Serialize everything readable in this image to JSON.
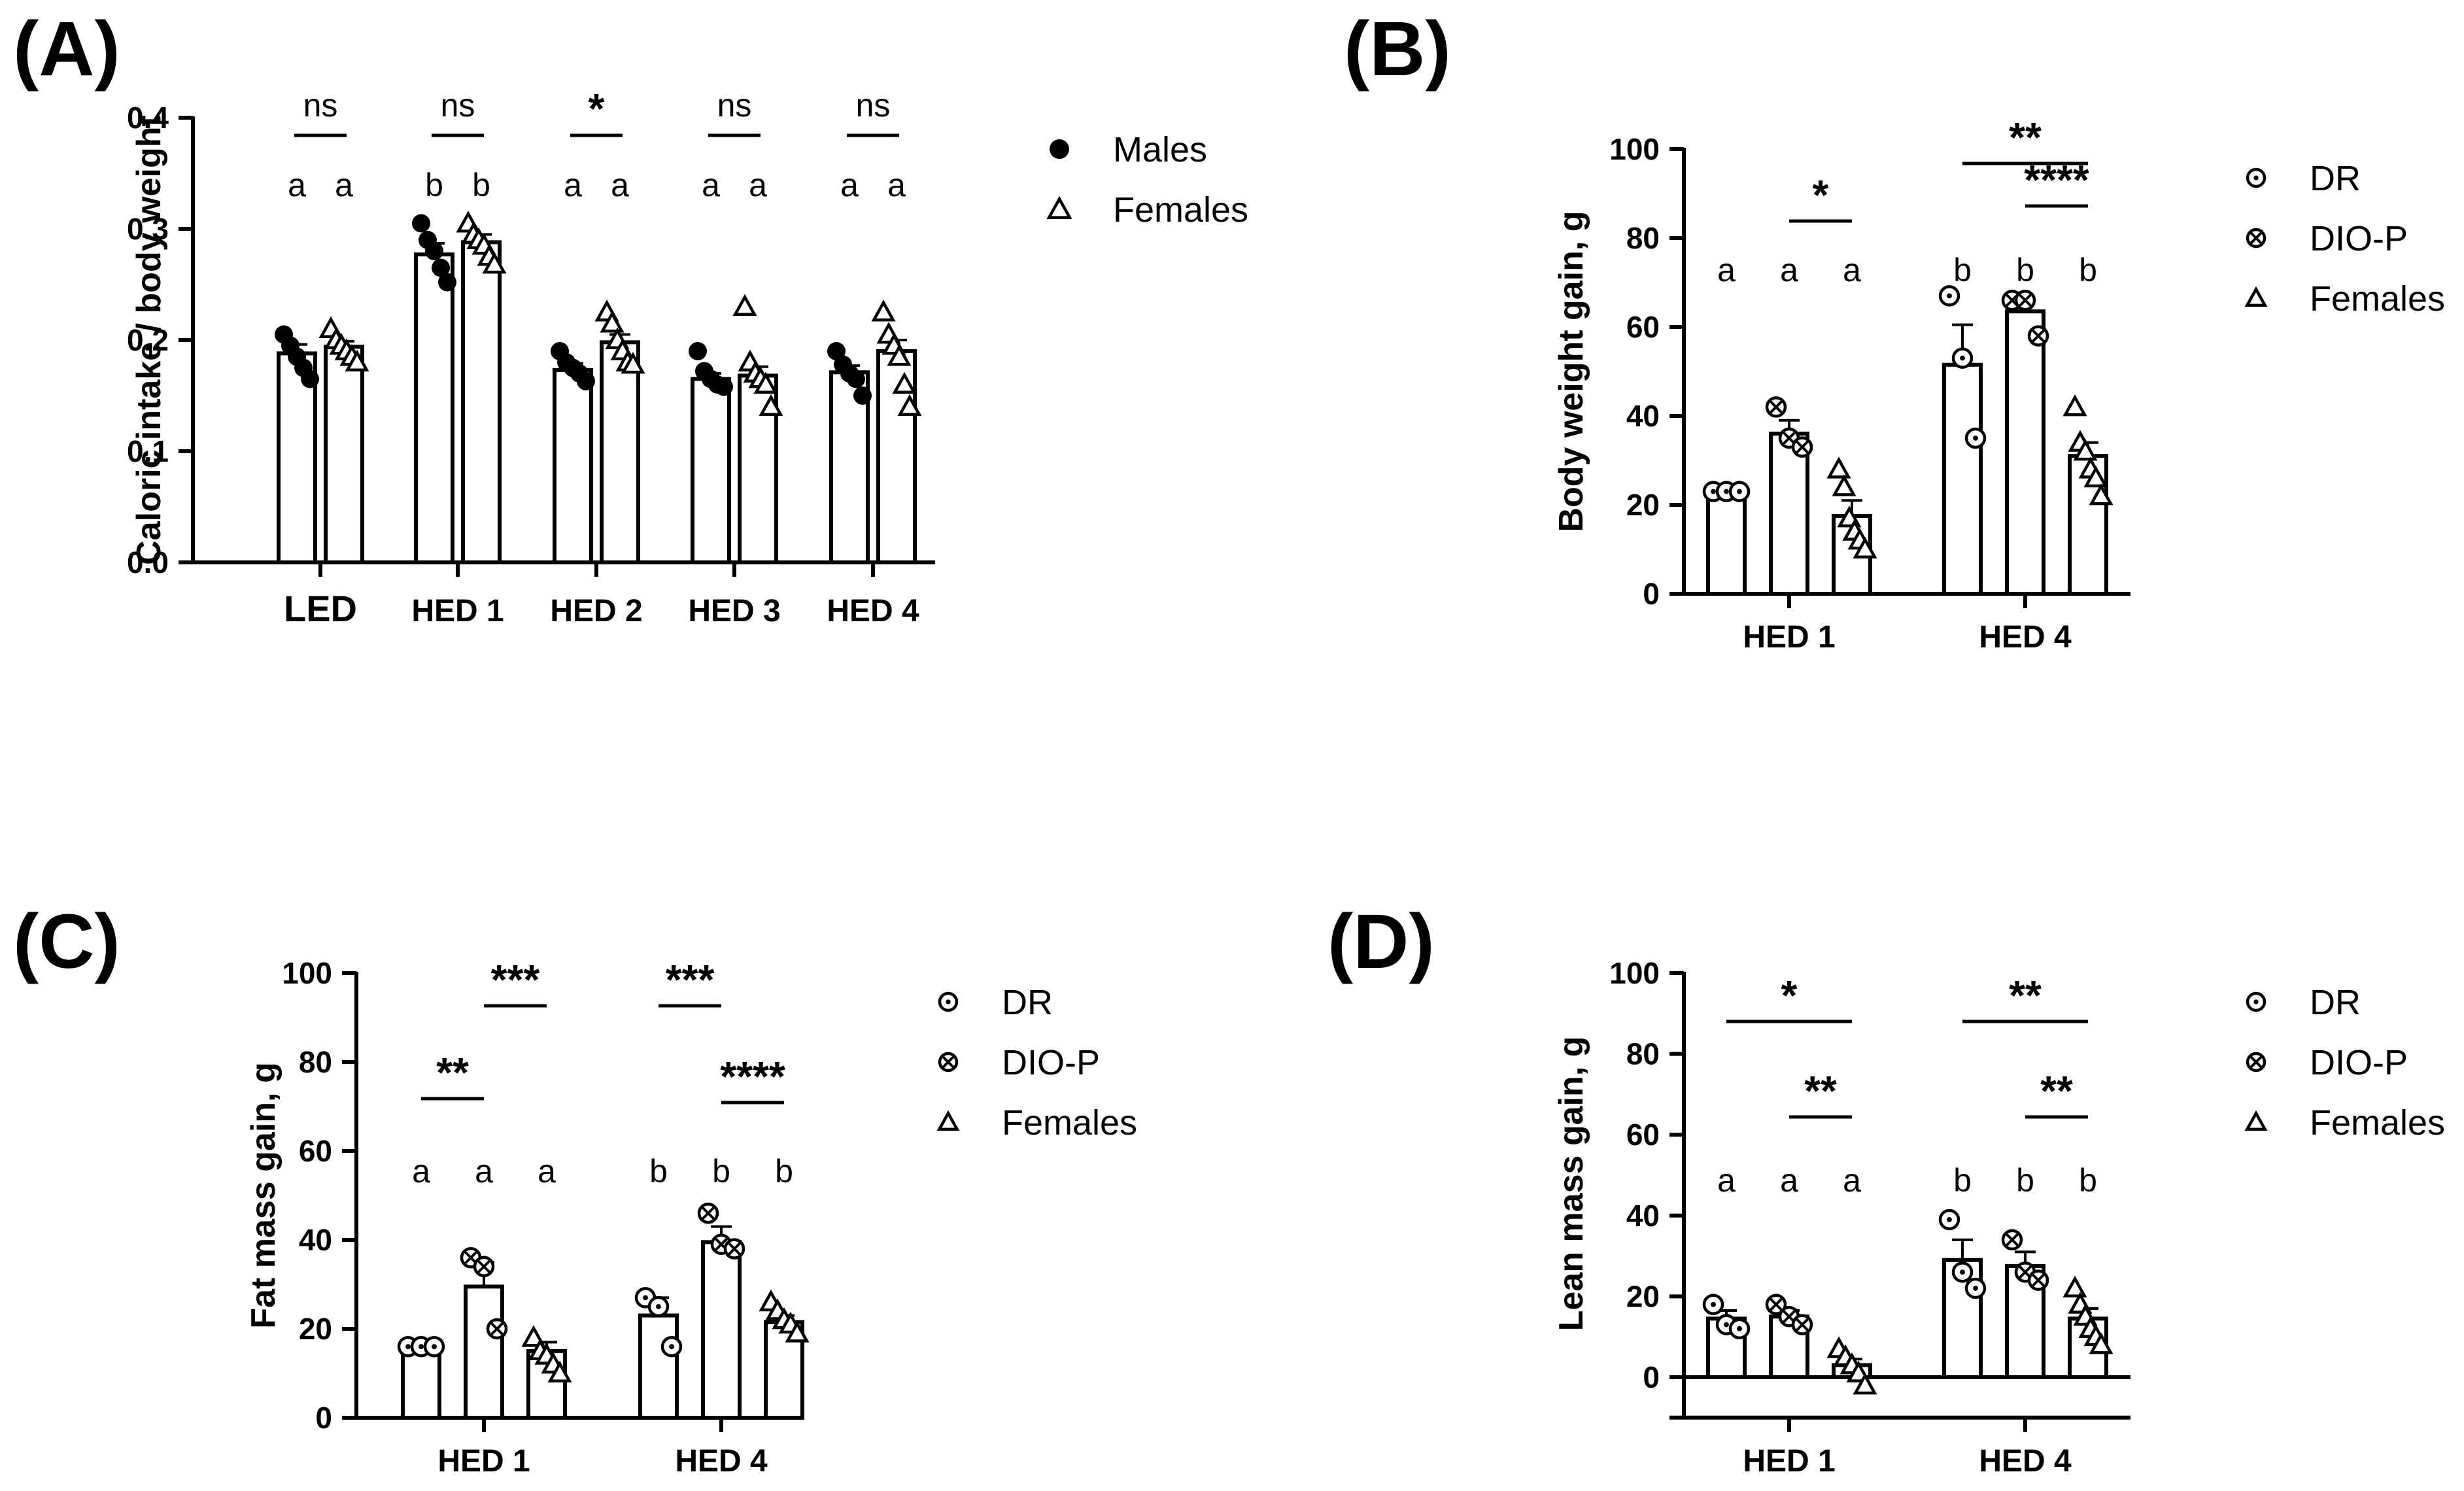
{
  "chart_data": [
    {
      "panel": "(A)",
      "type": "bar",
      "ylabel": "Caloric intake / body weight",
      "xlabel": "",
      "ylim": [
        0,
        0.4
      ],
      "yticks": [
        "0.0",
        "0.1",
        "0.2",
        "0.3",
        "0.4"
      ],
      "categories": [
        "LED",
        "HED 1",
        "HED 2",
        "HED 3",
        "HED 4"
      ],
      "series": [
        {
          "name": "Males",
          "marker": "dot",
          "values": [
            0.188,
            0.277,
            0.173,
            0.165,
            0.171
          ],
          "errors": [
            0.008,
            0.01,
            0.006,
            0.005,
            0.006
          ],
          "points": [
            [
              0.205,
              0.195,
              0.185,
              0.175,
              0.165
            ],
            [
              0.305,
              0.29,
              0.28,
              0.265,
              0.252
            ],
            [
              0.19,
              0.18,
              0.175,
              0.17,
              0.163
            ],
            [
              0.19,
              0.172,
              0.165,
              0.16,
              0.158
            ],
            [
              0.19,
              0.178,
              0.17,
              0.165,
              0.15
            ]
          ]
        },
        {
          "name": "Females",
          "marker": "triangle",
          "values": [
            0.194,
            0.288,
            0.198,
            0.168,
            0.19
          ],
          "errors": [
            0.005,
            0.007,
            0.007,
            0.008,
            0.01
          ],
          "points": [
            [
              0.21,
              0.2,
              0.195,
              0.19,
              0.185,
              0.18
            ],
            [
              0.305,
              0.295,
              0.29,
              0.285,
              0.275,
              0.268
            ],
            [
              0.225,
              0.215,
              0.2,
              0.19,
              0.18,
              0.178
            ],
            [
              0.23,
              0.18,
              0.17,
              0.165,
              0.16,
              0.14
            ],
            [
              0.225,
              0.205,
              0.195,
              0.185,
              0.16,
              0.14
            ]
          ]
        }
      ],
      "group_letters": [
        [
          "a",
          "a"
        ],
        [
          "b",
          "b"
        ],
        [
          "a",
          "a"
        ],
        [
          "a",
          "a"
        ],
        [
          "a",
          "a"
        ]
      ],
      "significance": [
        "ns",
        "ns",
        "*",
        "ns",
        "ns"
      ],
      "legend": [
        "Males",
        "Females"
      ]
    },
    {
      "panel": "(B)",
      "type": "bar",
      "ylabel": "Body weight gain, g",
      "xlabel": "",
      "ylim": [
        0,
        100
      ],
      "yticks": [
        "0",
        "20",
        "40",
        "60",
        "80",
        "100"
      ],
      "categories": [
        "HED 1",
        "HED 4"
      ],
      "series": [
        {
          "name": "DR",
          "marker": "circle-dot",
          "values": [
            23,
            51.5
          ],
          "errors": [
            1,
            9
          ],
          "points": [
            [
              23,
              23,
              23
            ],
            [
              67,
              53,
              35
            ]
          ]
        },
        {
          "name": "DIO-P",
          "marker": "circle-x",
          "values": [
            36,
            63.5
          ],
          "errors": [
            3,
            2.5
          ],
          "points": [
            [
              42,
              35,
              33
            ],
            [
              66,
              66,
              58
            ]
          ]
        },
        {
          "name": "Females",
          "marker": "triangle",
          "values": [
            17.5,
            31
          ],
          "errors": [
            3.5,
            3
          ],
          "points": [
            [
              28,
              24,
              17,
              14,
              12,
              10
            ],
            [
              42,
              34,
              32,
              28,
              26,
              22
            ]
          ]
        }
      ],
      "group_letters": [
        [
          "a",
          "a",
          "a"
        ],
        [
          "b",
          "b",
          "b"
        ]
      ],
      "significance": [
        {
          "from": 1,
          "to": 2,
          "label": "*"
        },
        {
          "from": 3,
          "to": 5,
          "label": "**"
        },
        {
          "from": 4,
          "to": 5,
          "label": "****"
        }
      ],
      "legend": [
        "DR",
        "DIO-P",
        "Females"
      ]
    },
    {
      "panel": "(C)",
      "type": "bar",
      "ylabel": "Fat mass gain, g",
      "xlabel": "",
      "ylim": [
        0,
        100
      ],
      "yticks": [
        "0",
        "20",
        "40",
        "60",
        "80",
        "100"
      ],
      "categories": [
        "HED 1",
        "HED 4"
      ],
      "series": [
        {
          "name": "DR",
          "marker": "circle-dot",
          "values": [
            15.5,
            23
          ],
          "errors": [
            1,
            4
          ],
          "points": [
            [
              16,
              16,
              16
            ],
            [
              27,
              25,
              16
            ]
          ]
        },
        {
          "name": "DIO-P",
          "marker": "circle-x",
          "values": [
            29.5,
            39.5
          ],
          "errors": [
            5.5,
            3.5
          ],
          "points": [
            [
              36,
              34,
              20
            ],
            [
              46,
              39,
              38
            ]
          ]
        },
        {
          "name": "Females",
          "marker": "triangle",
          "values": [
            15,
            21.5
          ],
          "errors": [
            2,
            1.5
          ],
          "points": [
            [
              18,
              15,
              14,
              12,
              10
            ],
            [
              26,
              24,
              22,
              21,
              19
            ]
          ]
        }
      ],
      "group_letters": [
        [
          "a",
          "a",
          "a"
        ],
        [
          "b",
          "b",
          "b"
        ]
      ],
      "significance": [
        {
          "from": 0,
          "to": 1,
          "label": "**"
        },
        {
          "from": 1,
          "to": 2,
          "label": "***"
        },
        {
          "from": 3,
          "to": 4,
          "label": "***"
        },
        {
          "from": 4,
          "to": 5,
          "label": "****"
        }
      ],
      "legend": [
        "DR",
        "DIO-P",
        "Females"
      ]
    },
    {
      "panel": "(D)",
      "type": "bar",
      "ylabel": "Lean mass gain, g",
      "xlabel": "",
      "ylim": [
        -10,
        100
      ],
      "yticks": [
        "0",
        "20",
        "40",
        "60",
        "80",
        "100"
      ],
      "categories": [
        "HED 1",
        "HED 4"
      ],
      "series": [
        {
          "name": "DR",
          "marker": "circle-dot",
          "values": [
            14.5,
            29
          ],
          "errors": [
            2,
            5
          ],
          "points": [
            [
              18,
              13,
              12
            ],
            [
              39,
              26,
              22
            ]
          ]
        },
        {
          "name": "DIO-P",
          "marker": "circle-x",
          "values": [
            15,
            27.5
          ],
          "errors": [
            1.5,
            3.5
          ],
          "points": [
            [
              18,
              15,
              13
            ],
            [
              34,
              26,
              24
            ]
          ]
        },
        {
          "name": "Females",
          "marker": "triangle",
          "values": [
            3,
            14.5
          ],
          "errors": [
            1.5,
            2.5
          ],
          "points": [
            [
              7,
              5,
              3,
              1,
              -2
            ],
            [
              22,
              18,
              15,
              12,
              10,
              8
            ]
          ]
        }
      ],
      "group_letters": [
        [
          "a",
          "a",
          "a"
        ],
        [
          "b",
          "b",
          "b"
        ]
      ],
      "significance": [
        {
          "from": 0,
          "to": 2,
          "label": "*"
        },
        {
          "from": 1,
          "to": 2,
          "label": "**"
        },
        {
          "from": 3,
          "to": 5,
          "label": "**"
        },
        {
          "from": 4,
          "to": 5,
          "label": "**"
        }
      ],
      "legend": [
        "DR",
        "DIO-P",
        "Females"
      ]
    }
  ]
}
